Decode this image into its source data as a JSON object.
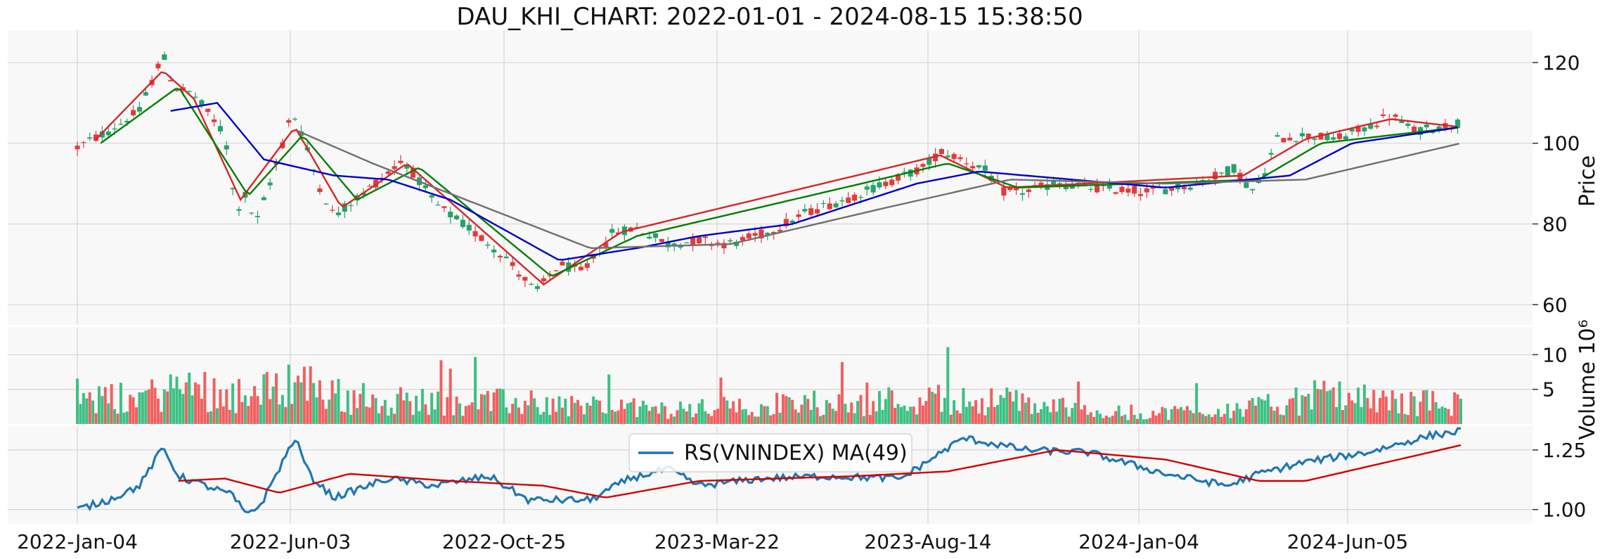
{
  "chart_data": {
    "type": "candlestick",
    "title": "DAU_KHI_CHART: 2022-01-01 - 2024-08-15 15:38:50",
    "x_tick_labels": [
      "2022-Jan-04",
      "2022-Jun-03",
      "2022-Oct-25",
      "2023-Mar-22",
      "2023-Aug-14",
      "2024-Jan-04",
      "2024-Jun-05"
    ],
    "panels": [
      {
        "name": "price",
        "ylabel": "Price",
        "ylim": [
          55,
          128
        ],
        "yticks": [
          "60",
          "80",
          "100",
          "120"
        ],
        "price_keyframes": [
          {
            "x": 0,
            "y": 99
          },
          {
            "x": 20,
            "y": 103
          },
          {
            "x": 40,
            "y": 108
          },
          {
            "x": 55,
            "y": 122
          },
          {
            "x": 62,
            "y": 114
          },
          {
            "x": 75,
            "y": 112
          },
          {
            "x": 95,
            "y": 102
          },
          {
            "x": 102,
            "y": 83
          },
          {
            "x": 108,
            "y": 87
          },
          {
            "x": 115,
            "y": 80
          },
          {
            "x": 130,
            "y": 97
          },
          {
            "x": 138,
            "y": 108
          },
          {
            "x": 143,
            "y": 104
          },
          {
            "x": 155,
            "y": 90
          },
          {
            "x": 165,
            "y": 82
          },
          {
            "x": 185,
            "y": 88
          },
          {
            "x": 210,
            "y": 96
          },
          {
            "x": 230,
            "y": 85
          },
          {
            "x": 255,
            "y": 78
          },
          {
            "x": 275,
            "y": 72
          },
          {
            "x": 295,
            "y": 63
          },
          {
            "x": 310,
            "y": 70
          },
          {
            "x": 325,
            "y": 68
          },
          {
            "x": 345,
            "y": 78
          },
          {
            "x": 360,
            "y": 79
          },
          {
            "x": 380,
            "y": 75
          },
          {
            "x": 400,
            "y": 76
          },
          {
            "x": 420,
            "y": 75
          },
          {
            "x": 445,
            "y": 78
          },
          {
            "x": 470,
            "y": 83
          },
          {
            "x": 500,
            "y": 87
          },
          {
            "x": 525,
            "y": 91
          },
          {
            "x": 545,
            "y": 94
          },
          {
            "x": 555,
            "y": 98
          },
          {
            "x": 570,
            "y": 96
          },
          {
            "x": 585,
            "y": 93
          },
          {
            "x": 595,
            "y": 88
          },
          {
            "x": 610,
            "y": 88
          },
          {
            "x": 630,
            "y": 90
          },
          {
            "x": 650,
            "y": 89
          },
          {
            "x": 690,
            "y": 88
          },
          {
            "x": 720,
            "y": 90
          },
          {
            "x": 745,
            "y": 94
          },
          {
            "x": 755,
            "y": 88
          },
          {
            "x": 762,
            "y": 91
          },
          {
            "x": 772,
            "y": 101
          },
          {
            "x": 790,
            "y": 102
          },
          {
            "x": 810,
            "y": 101
          },
          {
            "x": 830,
            "y": 104
          },
          {
            "x": 845,
            "y": 107
          },
          {
            "x": 860,
            "y": 103
          },
          {
            "x": 875,
            "y": 104
          },
          {
            "x": 890,
            "y": 105
          }
        ],
        "ma_series": [
          {
            "color": "#d62728",
            "keyframes": [
              {
                "x": 12,
                "y": 101
              },
              {
                "x": 55,
                "y": 118
              },
              {
                "x": 75,
                "y": 111
              },
              {
                "x": 105,
                "y": 86
              },
              {
                "x": 140,
                "y": 104
              },
              {
                "x": 170,
                "y": 84
              },
              {
                "x": 212,
                "y": 95
              },
              {
                "x": 300,
                "y": 65
              },
              {
                "x": 350,
                "y": 78
              },
              {
                "x": 555,
                "y": 97
              },
              {
                "x": 598,
                "y": 89
              },
              {
                "x": 750,
                "y": 92
              },
              {
                "x": 790,
                "y": 101
              },
              {
                "x": 845,
                "y": 106
              },
              {
                "x": 890,
                "y": 104
              }
            ]
          },
          {
            "color": "#008000",
            "keyframes": [
              {
                "x": 15,
                "y": 100
              },
              {
                "x": 65,
                "y": 114
              },
              {
                "x": 110,
                "y": 87
              },
              {
                "x": 145,
                "y": 102
              },
              {
                "x": 180,
                "y": 86
              },
              {
                "x": 220,
                "y": 94
              },
              {
                "x": 305,
                "y": 67
              },
              {
                "x": 360,
                "y": 77
              },
              {
                "x": 560,
                "y": 95
              },
              {
                "x": 605,
                "y": 89
              },
              {
                "x": 760,
                "y": 91
              },
              {
                "x": 800,
                "y": 100
              },
              {
                "x": 890,
                "y": 104
              }
            ]
          },
          {
            "color": "#0000cc",
            "keyframes": [
              {
                "x": 60,
                "y": 108
              },
              {
                "x": 90,
                "y": 110
              },
              {
                "x": 120,
                "y": 96
              },
              {
                "x": 165,
                "y": 92
              },
              {
                "x": 200,
                "y": 91
              },
              {
                "x": 240,
                "y": 86
              },
              {
                "x": 310,
                "y": 71
              },
              {
                "x": 360,
                "y": 74
              },
              {
                "x": 400,
                "y": 77
              },
              {
                "x": 460,
                "y": 80
              },
              {
                "x": 540,
                "y": 90
              },
              {
                "x": 580,
                "y": 93
              },
              {
                "x": 700,
                "y": 89
              },
              {
                "x": 780,
                "y": 92
              },
              {
                "x": 820,
                "y": 100
              },
              {
                "x": 890,
                "y": 104
              }
            ]
          },
          {
            "color": "#707070",
            "keyframes": [
              {
                "x": 142,
                "y": 103
              },
              {
                "x": 190,
                "y": 95
              },
              {
                "x": 250,
                "y": 86
              },
              {
                "x": 330,
                "y": 74
              },
              {
                "x": 420,
                "y": 75
              },
              {
                "x": 520,
                "y": 84
              },
              {
                "x": 600,
                "y": 91
              },
              {
                "x": 700,
                "y": 90
              },
              {
                "x": 790,
                "y": 91
              },
              {
                "x": 890,
                "y": 100
              }
            ]
          }
        ]
      },
      {
        "name": "volume",
        "ylabel": "Volume  10⁶",
        "ylim": [
          0,
          14
        ],
        "yticks": [
          "5",
          "10"
        ],
        "volume_level_keyframes": [
          {
            "x": 0,
            "y": 3.2
          },
          {
            "x": 45,
            "y": 4
          },
          {
            "x": 70,
            "y": 5.5
          },
          {
            "x": 110,
            "y": 3.6
          },
          {
            "x": 140,
            "y": 6.5
          },
          {
            "x": 175,
            "y": 3.5
          },
          {
            "x": 300,
            "y": 3
          },
          {
            "x": 380,
            "y": 2
          },
          {
            "x": 450,
            "y": 2.8
          },
          {
            "x": 550,
            "y": 3.6
          },
          {
            "x": 600,
            "y": 3.2
          },
          {
            "x": 680,
            "y": 1.4
          },
          {
            "x": 760,
            "y": 2.4
          },
          {
            "x": 800,
            "y": 4
          },
          {
            "x": 850,
            "y": 3.1
          },
          {
            "x": 890,
            "y": 3
          }
        ]
      },
      {
        "name": "relative-strength",
        "ylim": [
          0.94,
          1.35
        ],
        "yticks": [
          "1.00",
          "1.25"
        ],
        "legend_label": "RS(VNINDEX) MA(49)",
        "legend_position": "top-center",
        "rs_series": {
          "color": "#1f77b4",
          "keyframes": [
            {
              "x": 0,
              "y": 1.0
            },
            {
              "x": 20,
              "y": 1.04
            },
            {
              "x": 40,
              "y": 1.1
            },
            {
              "x": 55,
              "y": 1.26
            },
            {
              "x": 65,
              "y": 1.14
            },
            {
              "x": 100,
              "y": 1.06
            },
            {
              "x": 108,
              "y": 0.98
            },
            {
              "x": 118,
              "y": 1.02
            },
            {
              "x": 132,
              "y": 1.2
            },
            {
              "x": 140,
              "y": 1.3
            },
            {
              "x": 150,
              "y": 1.14
            },
            {
              "x": 165,
              "y": 1.05
            },
            {
              "x": 200,
              "y": 1.13
            },
            {
              "x": 230,
              "y": 1.1
            },
            {
              "x": 265,
              "y": 1.14
            },
            {
              "x": 290,
              "y": 1.04
            },
            {
              "x": 330,
              "y": 1.04
            },
            {
              "x": 355,
              "y": 1.13
            },
            {
              "x": 380,
              "y": 1.17
            },
            {
              "x": 400,
              "y": 1.1
            },
            {
              "x": 440,
              "y": 1.13
            },
            {
              "x": 480,
              "y": 1.14
            },
            {
              "x": 530,
              "y": 1.13
            },
            {
              "x": 570,
              "y": 1.3
            },
            {
              "x": 610,
              "y": 1.25
            },
            {
              "x": 650,
              "y": 1.24
            },
            {
              "x": 700,
              "y": 1.15
            },
            {
              "x": 740,
              "y": 1.1
            },
            {
              "x": 760,
              "y": 1.15
            },
            {
              "x": 790,
              "y": 1.2
            },
            {
              "x": 830,
              "y": 1.24
            },
            {
              "x": 870,
              "y": 1.31
            },
            {
              "x": 890,
              "y": 1.33
            }
          ]
        },
        "rs_ma_series": {
          "color": "#d40000",
          "keyframes": [
            {
              "x": 65,
              "y": 1.12
            },
            {
              "x": 95,
              "y": 1.13
            },
            {
              "x": 130,
              "y": 1.07
            },
            {
              "x": 175,
              "y": 1.15
            },
            {
              "x": 240,
              "y": 1.12
            },
            {
              "x": 300,
              "y": 1.1
            },
            {
              "x": 340,
              "y": 1.05
            },
            {
              "x": 400,
              "y": 1.12
            },
            {
              "x": 500,
              "y": 1.14
            },
            {
              "x": 560,
              "y": 1.16
            },
            {
              "x": 630,
              "y": 1.25
            },
            {
              "x": 700,
              "y": 1.21
            },
            {
              "x": 760,
              "y": 1.12
            },
            {
              "x": 790,
              "y": 1.12
            },
            {
              "x": 830,
              "y": 1.18
            },
            {
              "x": 890,
              "y": 1.27
            }
          ]
        }
      }
    ],
    "colors": {
      "up": "#26a269",
      "down": "#e33b3b",
      "volume_up": "#3cc083",
      "volume_down": "#f25f5f",
      "background": "#f8f8f8",
      "grid": "#d6d6d6"
    }
  }
}
